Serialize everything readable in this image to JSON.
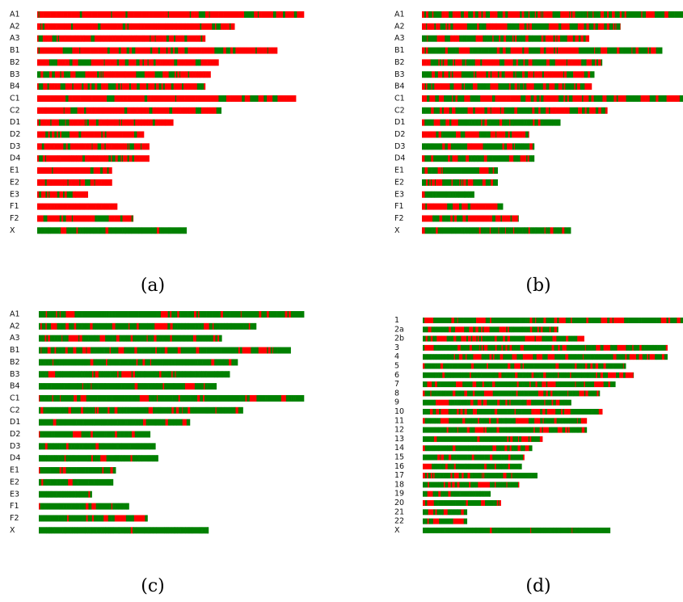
{
  "colors": {
    "red": "#ff0000",
    "green": "#008000",
    "background": "#ffffff"
  },
  "chart_data": [
    {
      "type": "ideogram",
      "caption": "(a)",
      "chromosomes": [
        {
          "label": "A1",
          "length": 1.0,
          "red_fraction": 0.82
        },
        {
          "label": "A2",
          "length": 0.74,
          "red_fraction": 0.85
        },
        {
          "label": "A3",
          "length": 0.63,
          "red_fraction": 0.8
        },
        {
          "label": "B1",
          "length": 0.9,
          "red_fraction": 0.84
        },
        {
          "label": "B2",
          "length": 0.68,
          "red_fraction": 0.83
        },
        {
          "label": "B3",
          "length": 0.65,
          "red_fraction": 0.82
        },
        {
          "label": "B4",
          "length": 0.63,
          "red_fraction": 0.8
        },
        {
          "label": "C1",
          "length": 0.97,
          "red_fraction": 0.86
        },
        {
          "label": "C2",
          "length": 0.69,
          "red_fraction": 0.83
        },
        {
          "label": "D1",
          "length": 0.51,
          "red_fraction": 0.82
        },
        {
          "label": "D2",
          "length": 0.4,
          "red_fraction": 0.8
        },
        {
          "label": "D3",
          "length": 0.42,
          "red_fraction": 0.78
        },
        {
          "label": "D4",
          "length": 0.42,
          "red_fraction": 0.8
        },
        {
          "label": "E1",
          "length": 0.28,
          "red_fraction": 0.83
        },
        {
          "label": "E2",
          "length": 0.28,
          "red_fraction": 0.78
        },
        {
          "label": "E3",
          "length": 0.19,
          "red_fraction": 0.8
        },
        {
          "label": "F1",
          "length": 0.3,
          "red_fraction": 0.95
        },
        {
          "label": "F2",
          "length": 0.36,
          "red_fraction": 0.75
        },
        {
          "label": "X",
          "length": 0.56,
          "red_fraction": 0.05
        }
      ]
    },
    {
      "type": "ideogram",
      "caption": "(b)",
      "chromosomes": [
        {
          "label": "A1",
          "length": 1.0,
          "red_fraction": 0.45
        },
        {
          "label": "A2",
          "length": 0.76,
          "red_fraction": 0.45
        },
        {
          "label": "A3",
          "length": 0.64,
          "red_fraction": 0.5
        },
        {
          "label": "B1",
          "length": 0.92,
          "red_fraction": 0.45
        },
        {
          "label": "B2",
          "length": 0.69,
          "red_fraction": 0.45
        },
        {
          "label": "B3",
          "length": 0.66,
          "red_fraction": 0.48
        },
        {
          "label": "B4",
          "length": 0.65,
          "red_fraction": 0.45
        },
        {
          "label": "C1",
          "length": 1.0,
          "red_fraction": 0.4
        },
        {
          "label": "C2",
          "length": 0.71,
          "red_fraction": 0.45
        },
        {
          "label": "D1",
          "length": 0.53,
          "red_fraction": 0.3
        },
        {
          "label": "D2",
          "length": 0.41,
          "red_fraction": 0.55
        },
        {
          "label": "D3",
          "length": 0.43,
          "red_fraction": 0.4
        },
        {
          "label": "D4",
          "length": 0.43,
          "red_fraction": 0.3
        },
        {
          "label": "E1",
          "length": 0.29,
          "red_fraction": 0.4
        },
        {
          "label": "E2",
          "length": 0.29,
          "red_fraction": 0.5
        },
        {
          "label": "E3",
          "length": 0.2,
          "red_fraction": 0.1
        },
        {
          "label": "F1",
          "length": 0.31,
          "red_fraction": 0.55
        },
        {
          "label": "F2",
          "length": 0.37,
          "red_fraction": 0.5
        },
        {
          "label": "X",
          "length": 0.57,
          "red_fraction": 0.15
        }
      ]
    },
    {
      "type": "ideogram",
      "caption": "(c)",
      "chromosomes": [
        {
          "label": "A1",
          "length": 1.0,
          "red_fraction": 0.1
        },
        {
          "label": "A2",
          "length": 0.82,
          "red_fraction": 0.18
        },
        {
          "label": "A3",
          "length": 0.69,
          "red_fraction": 0.15
        },
        {
          "label": "B1",
          "length": 0.95,
          "red_fraction": 0.22
        },
        {
          "label": "B2",
          "length": 0.75,
          "red_fraction": 0.14
        },
        {
          "label": "B3",
          "length": 0.72,
          "red_fraction": 0.14
        },
        {
          "label": "B4",
          "length": 0.67,
          "red_fraction": 0.14
        },
        {
          "label": "C1",
          "length": 1.0,
          "red_fraction": 0.12
        },
        {
          "label": "C2",
          "length": 0.77,
          "red_fraction": 0.14
        },
        {
          "label": "D1",
          "length": 0.57,
          "red_fraction": 0.12
        },
        {
          "label": "D2",
          "length": 0.42,
          "red_fraction": 0.14
        },
        {
          "label": "D3",
          "length": 0.44,
          "red_fraction": 0.14
        },
        {
          "label": "D4",
          "length": 0.45,
          "red_fraction": 0.14
        },
        {
          "label": "E1",
          "length": 0.29,
          "red_fraction": 0.12
        },
        {
          "label": "E2",
          "length": 0.28,
          "red_fraction": 0.16
        },
        {
          "label": "E3",
          "length": 0.2,
          "red_fraction": 0.1
        },
        {
          "label": "F1",
          "length": 0.34,
          "red_fraction": 0.14
        },
        {
          "label": "F2",
          "length": 0.41,
          "red_fraction": 0.16
        },
        {
          "label": "X",
          "length": 0.64,
          "red_fraction": 0.06
        }
      ]
    },
    {
      "type": "ideogram",
      "caption": "(d)",
      "chromosomes": [
        {
          "label": "1",
          "length": 1.0,
          "red_fraction": 0.25
        },
        {
          "label": "2a",
          "length": 0.52,
          "red_fraction": 0.28
        },
        {
          "label": "2b",
          "length": 0.62,
          "red_fraction": 0.3
        },
        {
          "label": "3",
          "length": 0.94,
          "red_fraction": 0.25
        },
        {
          "label": "4",
          "length": 0.94,
          "red_fraction": 0.3
        },
        {
          "label": "5",
          "length": 0.78,
          "red_fraction": 0.22
        },
        {
          "label": "6",
          "length": 0.81,
          "red_fraction": 0.25
        },
        {
          "label": "7",
          "length": 0.74,
          "red_fraction": 0.25
        },
        {
          "label": "8",
          "length": 0.68,
          "red_fraction": 0.2
        },
        {
          "label": "9",
          "length": 0.57,
          "red_fraction": 0.25
        },
        {
          "label": "10",
          "length": 0.69,
          "red_fraction": 0.25
        },
        {
          "label": "11",
          "length": 0.63,
          "red_fraction": 0.25
        },
        {
          "label": "12",
          "length": 0.63,
          "red_fraction": 0.25
        },
        {
          "label": "13",
          "length": 0.46,
          "red_fraction": 0.2
        },
        {
          "label": "14",
          "length": 0.42,
          "red_fraction": 0.25
        },
        {
          "label": "15",
          "length": 0.39,
          "red_fraction": 0.2
        },
        {
          "label": "16",
          "length": 0.38,
          "red_fraction": 0.22
        },
        {
          "label": "17",
          "length": 0.44,
          "red_fraction": 0.25
        },
        {
          "label": "18",
          "length": 0.37,
          "red_fraction": 0.25
        },
        {
          "label": "19",
          "length": 0.26,
          "red_fraction": 0.15
        },
        {
          "label": "20",
          "length": 0.3,
          "red_fraction": 0.2
        },
        {
          "label": "21",
          "length": 0.17,
          "red_fraction": 0.3
        },
        {
          "label": "22",
          "length": 0.17,
          "red_fraction": 0.25
        },
        {
          "label": "X",
          "length": 0.72,
          "red_fraction": 0.06
        }
      ]
    }
  ]
}
